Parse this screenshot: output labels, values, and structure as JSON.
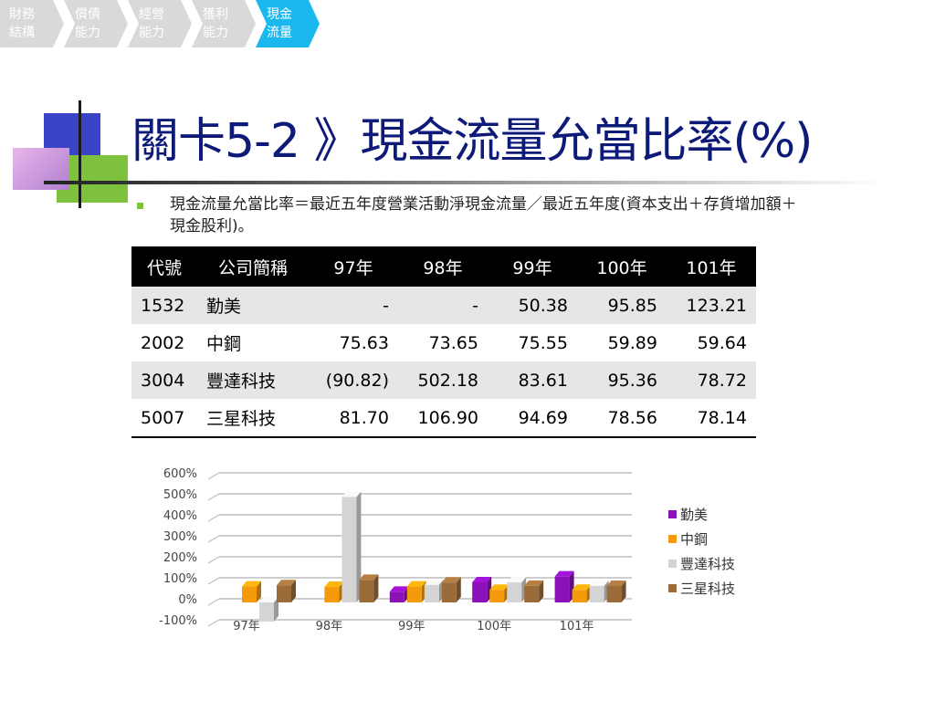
{
  "nav": {
    "steps": [
      {
        "line1": "財務",
        "line2": "結構"
      },
      {
        "line1": "償債",
        "line2": "能力"
      },
      {
        "line1": "經營",
        "line2": "能力"
      },
      {
        "line1": "獲利",
        "line2": "能力"
      },
      {
        "line1": "現金",
        "line2": "流量"
      }
    ],
    "active_index": 4
  },
  "title": "關卡5-2 》現金流量允當比率(%)",
  "description": "現金流量允當比率＝最近五年度營業活動淨現金流量／最近五年度(資本支出＋存貨增加額＋現金股利)。",
  "table": {
    "headers": [
      "代號",
      "公司簡稱",
      "97年",
      "98年",
      "99年",
      "100年",
      "101年"
    ],
    "rows": [
      {
        "code": "1532",
        "name": "勤美",
        "values": [
          "-",
          "-",
          "50.38",
          "95.85",
          "123.21"
        ]
      },
      {
        "code": "2002",
        "name": "中鋼",
        "values": [
          "75.63",
          "73.65",
          "75.55",
          "59.89",
          "59.64"
        ]
      },
      {
        "code": "3004",
        "name": "豐達科技",
        "values": [
          "(90.82)",
          "502.18",
          "83.61",
          "95.36",
          "78.72"
        ]
      },
      {
        "code": "5007",
        "name": "三星科技",
        "values": [
          "81.70",
          "106.90",
          "94.69",
          "78.56",
          "78.14"
        ]
      }
    ]
  },
  "chart_data": {
    "type": "bar",
    "categories": [
      "97年",
      "98年",
      "99年",
      "100年",
      "101年"
    ],
    "series": [
      {
        "name": "勤美",
        "color": "#8b10b8",
        "values": [
          null,
          null,
          50.38,
          95.85,
          123.21
        ]
      },
      {
        "name": "中鋼",
        "color": "#f59a0a",
        "values": [
          75.63,
          73.65,
          75.55,
          59.89,
          59.64
        ]
      },
      {
        "name": "豐達科技",
        "color": "#d4d4d4",
        "values": [
          -90.82,
          502.18,
          83.61,
          95.36,
          78.72
        ]
      },
      {
        "name": "三星科技",
        "color": "#9b6c3a",
        "values": [
          81.7,
          106.9,
          94.69,
          78.56,
          78.14
        ]
      }
    ],
    "y_ticks": [
      "600%",
      "500%",
      "400%",
      "300%",
      "200%",
      "100%",
      "0%",
      "-100%"
    ],
    "ylim": [
      -100,
      600
    ],
    "grid": true,
    "legend_position": "right"
  }
}
